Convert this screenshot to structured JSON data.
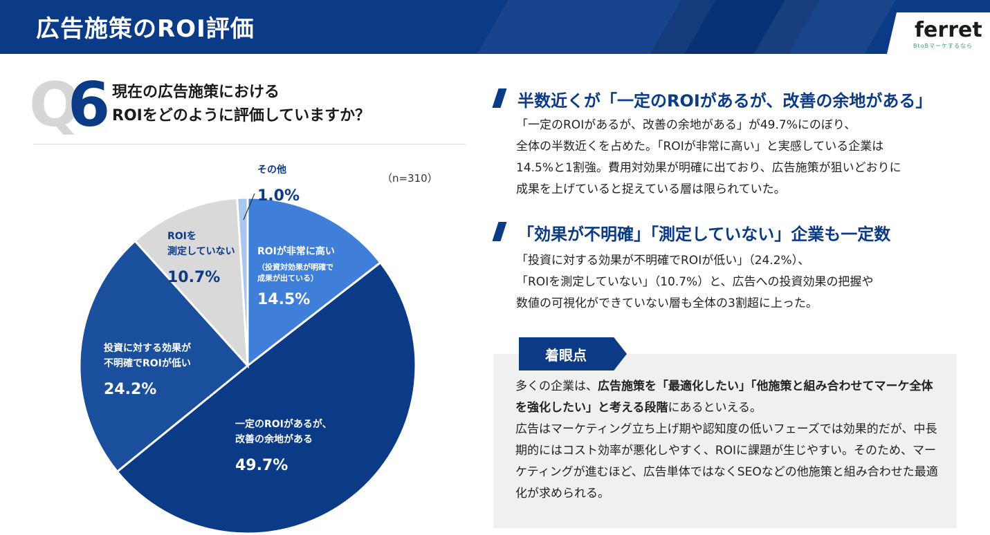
{
  "header": {
    "title": "広告施策のROI評価"
  },
  "logo": {
    "word": "ferret",
    "tagline": "BtoBマーケするなら"
  },
  "question": {
    "watermark": "Q",
    "number": "6",
    "line1": "現在の広告施策における",
    "line2": "ROIをどのように評価していますか？",
    "n": "（n=310）"
  },
  "chart_data": {
    "type": "pie",
    "unit": "%",
    "slices": [
      {
        "label_lines": [
          "ROIが非常に高い",
          "（投資対効果が明確で",
          "成果が出ている）"
        ],
        "value": 14.5,
        "value_text": "14.5%",
        "color": "#3f7fd9"
      },
      {
        "label_lines": [
          "一定のROIがあるが、",
          "改善の余地がある"
        ],
        "value": 49.7,
        "value_text": "49.7%",
        "color": "#0b3a86"
      },
      {
        "label_lines": [
          "投資に対する効果が",
          "不明確でROIが低い"
        ],
        "value": 24.2,
        "value_text": "24.2%",
        "color": "#1a4f9e"
      },
      {
        "label_lines": [
          "ROIを",
          "測定していない"
        ],
        "value": 10.7,
        "value_text": "10.7%",
        "color": "#d9d9d9"
      },
      {
        "label_lines": [
          "その他"
        ],
        "value": 1.0,
        "value_text": "1.0%",
        "color": "#a9c6ee"
      }
    ]
  },
  "section1": {
    "title": "半数近くが「一定のROIがあるが、改善の余地がある」",
    "body": [
      "「一定のROIがあるが、改善の余地がある」が49.7%にのぼり、",
      "全体の半数近くを占めた。「ROIが非常に高い」と実感している企業は",
      "14.5%と1割強。費用対効果が明確に出ており、広告施策が狙いどおりに",
      "成果を上げていると捉えている層は限られていた。"
    ]
  },
  "section2": {
    "title": "「効果が不明確」「測定していない」企業も一定数",
    "body": [
      "「投資に対する効果が不明確でROIが低い」（24.2%）、",
      "「ROIを測定していない」（10.7%）と、広告への投資効果の把握や",
      "数値の可視化ができていない層も全体の3割超に上った。"
    ]
  },
  "note": {
    "tag": "着眼点",
    "p1_pre": "多くの企業は、",
    "p1_bold": "広告施策を「最適化したい」「他施策と組み合わせてマーケ全体を強化したい」と考える段階",
    "p1_post": "にあるといえる。",
    "p2": "広告はマーケティング立ち上げ期や認知度の低いフェーズでは効果的だが、中長期的にはコスト効率が悪化しやすく、ROIに課題が生じやすい。そのため、マーケティングが進むほど、広告単体ではなくSEOなどの他施策と組み合わせた最適化が求められる。"
  }
}
